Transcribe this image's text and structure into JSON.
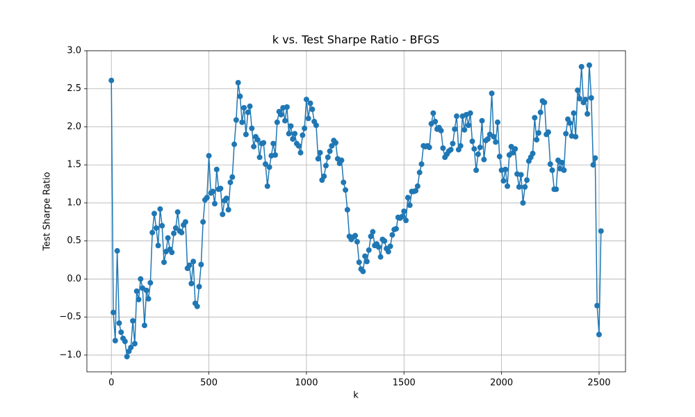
{
  "chart_data": {
    "type": "line",
    "title": "k vs. Test Sharpe Ratio - BFGS",
    "xlabel": "k",
    "ylabel": "Test Sharpe Ratio",
    "x": [
      0,
      10,
      20,
      30,
      40,
      50,
      60,
      70,
      80,
      90,
      100,
      110,
      120,
      130,
      140,
      150,
      160,
      170,
      180,
      190,
      200,
      210,
      220,
      230,
      240,
      250,
      260,
      270,
      280,
      290,
      300,
      310,
      320,
      330,
      340,
      350,
      360,
      370,
      380,
      390,
      400,
      410,
      420,
      430,
      440,
      450,
      460,
      470,
      480,
      490,
      500,
      510,
      520,
      530,
      540,
      550,
      560,
      570,
      580,
      590,
      600,
      610,
      620,
      630,
      640,
      650,
      660,
      670,
      680,
      690,
      700,
      710,
      720,
      730,
      740,
      750,
      760,
      770,
      780,
      790,
      800,
      810,
      820,
      830,
      840,
      850,
      860,
      870,
      880,
      890,
      900,
      910,
      920,
      930,
      940,
      950,
      960,
      970,
      980,
      990,
      1000,
      1010,
      1020,
      1030,
      1040,
      1050,
      1060,
      1070,
      1080,
      1090,
      1100,
      1110,
      1120,
      1130,
      1140,
      1150,
      1160,
      1170,
      1180,
      1190,
      1200,
      1210,
      1220,
      1230,
      1240,
      1250,
      1260,
      1270,
      1280,
      1290,
      1300,
      1310,
      1320,
      1330,
      1340,
      1350,
      1360,
      1370,
      1380,
      1390,
      1400,
      1410,
      1420,
      1430,
      1440,
      1450,
      1460,
      1470,
      1480,
      1490,
      1500,
      1510,
      1520,
      1530,
      1540,
      1550,
      1560,
      1570,
      1580,
      1590,
      1600,
      1610,
      1620,
      1630,
      1640,
      1650,
      1660,
      1670,
      1680,
      1690,
      1700,
      1710,
      1720,
      1730,
      1740,
      1750,
      1760,
      1770,
      1780,
      1790,
      1800,
      1810,
      1820,
      1830,
      1840,
      1850,
      1860,
      1870,
      1880,
      1890,
      1900,
      1910,
      1920,
      1930,
      1940,
      1950,
      1960,
      1970,
      1980,
      1990,
      2000,
      2010,
      2020,
      2030,
      2040,
      2050,
      2060,
      2070,
      2080,
      2090,
      2100,
      2110,
      2120,
      2130,
      2140,
      2150,
      2160,
      2170,
      2180,
      2190,
      2200,
      2210,
      2220,
      2230,
      2240,
      2250,
      2260,
      2270,
      2280,
      2290,
      2300,
      2310,
      2320,
      2330,
      2340,
      2350,
      2360,
      2370,
      2380,
      2390,
      2400,
      2410,
      2420,
      2430,
      2440,
      2450,
      2460,
      2470,
      2480,
      2490,
      2500,
      2510
    ],
    "series": [
      {
        "name": "Test Sharpe Ratio",
        "color": "#1f77b4",
        "values": [
          2.61,
          -0.44,
          -0.81,
          0.37,
          -0.58,
          -0.7,
          -0.78,
          -0.82,
          -1.02,
          -0.95,
          -0.9,
          -0.55,
          -0.85,
          -0.16,
          -0.27,
          0.0,
          -0.12,
          -0.61,
          -0.15,
          -0.26,
          -0.05,
          0.61,
          0.86,
          0.67,
          0.44,
          0.92,
          0.7,
          0.22,
          0.36,
          0.54,
          0.39,
          0.35,
          0.6,
          0.67,
          0.88,
          0.63,
          0.61,
          0.71,
          0.75,
          0.14,
          0.18,
          -0.06,
          0.23,
          -0.32,
          -0.36,
          -0.1,
          0.19,
          0.75,
          1.04,
          1.07,
          1.62,
          1.13,
          1.15,
          0.99,
          1.44,
          1.18,
          1.19,
          0.85,
          1.03,
          1.06,
          0.91,
          1.27,
          1.34,
          1.77,
          2.09,
          2.58,
          2.4,
          2.06,
          2.25,
          1.9,
          2.19,
          2.27,
          1.98,
          1.74,
          1.87,
          1.83,
          1.6,
          1.78,
          1.79,
          1.51,
          1.22,
          1.47,
          1.62,
          1.78,
          1.63,
          2.06,
          2.2,
          2.16,
          2.25,
          2.08,
          2.26,
          1.91,
          2.01,
          1.84,
          1.91,
          1.78,
          1.75,
          1.66,
          1.89,
          1.98,
          2.36,
          2.11,
          2.31,
          2.23,
          2.07,
          2.02,
          1.58,
          1.66,
          1.3,
          1.35,
          1.49,
          1.6,
          1.68,
          1.75,
          1.82,
          1.79,
          1.58,
          1.52,
          1.56,
          1.27,
          1.17,
          0.91,
          0.56,
          0.52,
          0.55,
          0.57,
          0.49,
          0.22,
          0.13,
          0.1,
          0.3,
          0.23,
          0.38,
          0.56,
          0.62,
          0.44,
          0.46,
          0.42,
          0.29,
          0.52,
          0.5,
          0.4,
          0.36,
          0.43,
          0.58,
          0.65,
          0.66,
          0.81,
          0.8,
          0.82,
          0.89,
          0.77,
          1.07,
          0.97,
          1.15,
          1.15,
          1.16,
          1.22,
          1.4,
          1.51,
          1.75,
          1.74,
          1.75,
          1.73,
          2.04,
          2.18,
          2.07,
          1.97,
          1.99,
          1.95,
          1.72,
          1.6,
          1.64,
          1.68,
          1.7,
          1.78,
          1.97,
          2.14,
          1.7,
          1.75,
          2.14,
          1.96,
          2.16,
          2.02,
          2.18,
          1.81,
          1.71,
          1.43,
          1.64,
          1.73,
          2.08,
          1.57,
          1.82,
          1.84,
          1.9,
          2.44,
          1.87,
          1.8,
          2.06,
          1.61,
          1.43,
          1.29,
          1.44,
          1.22,
          1.63,
          1.74,
          1.66,
          1.71,
          1.38,
          1.21,
          1.37,
          1.0,
          1.21,
          1.3,
          1.55,
          1.6,
          1.65,
          2.12,
          1.83,
          1.92,
          2.19,
          2.34,
          2.32,
          1.9,
          1.93,
          1.51,
          1.43,
          1.18,
          1.18,
          1.56,
          1.45,
          1.53,
          1.43,
          1.91,
          2.1,
          2.05,
          1.88,
          2.18,
          1.87,
          2.48,
          2.37,
          2.79,
          2.32,
          2.36,
          2.17,
          2.81,
          2.38,
          1.5,
          1.59,
          -0.35,
          -0.73,
          0.63
        ]
      }
    ],
    "xlim": [
      -125.5,
      2635.5
    ],
    "ylim": [
      -1.22,
      3.0
    ],
    "xticks": [
      0,
      500,
      1000,
      1500,
      2000,
      2500
    ],
    "yticks": [
      {
        "value": -1.0,
        "label": "−1.0"
      },
      {
        "value": -0.5,
        "label": "−0.5"
      },
      {
        "value": 0.0,
        "label": "0.0"
      },
      {
        "value": 0.5,
        "label": "0.5"
      },
      {
        "value": 1.0,
        "label": "1.0"
      },
      {
        "value": 1.5,
        "label": "1.5"
      },
      {
        "value": 2.0,
        "label": "2.0"
      },
      {
        "value": 2.5,
        "label": "2.5"
      },
      {
        "value": 3.0,
        "label": "3.0"
      }
    ],
    "grid": true
  }
}
